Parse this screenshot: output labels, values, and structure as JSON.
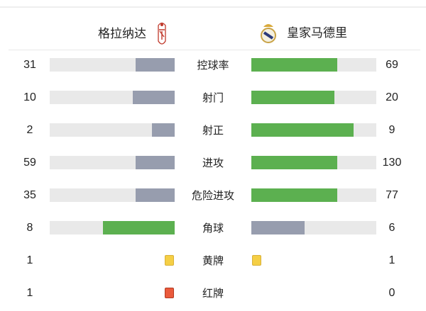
{
  "home": {
    "name": "格拉纳达",
    "logo": "granada-crest"
  },
  "away": {
    "name": "皇家马德里",
    "logo": "real-madrid-crest"
  },
  "colors": {
    "winner": "#5cb050",
    "loser": "#979dae",
    "track": "#e9e9e9",
    "yellow_card": "#f5cf45",
    "red_card": "#ea5a3c"
  },
  "stats": [
    {
      "label": "控球率",
      "home": 31,
      "away": 69
    },
    {
      "label": "射门",
      "home": 10,
      "away": 20
    },
    {
      "label": "射正",
      "home": 2,
      "away": 9
    },
    {
      "label": "进攻",
      "home": 59,
      "away": 130
    },
    {
      "label": "危险进攻",
      "home": 35,
      "away": 77
    },
    {
      "label": "角球",
      "home": 8,
      "away": 6
    }
  ],
  "cards": [
    {
      "label": "黄牌",
      "type": "yellow",
      "home": 1,
      "away": 1
    },
    {
      "label": "红牌",
      "type": "red",
      "home": 1,
      "away": 0
    }
  ]
}
